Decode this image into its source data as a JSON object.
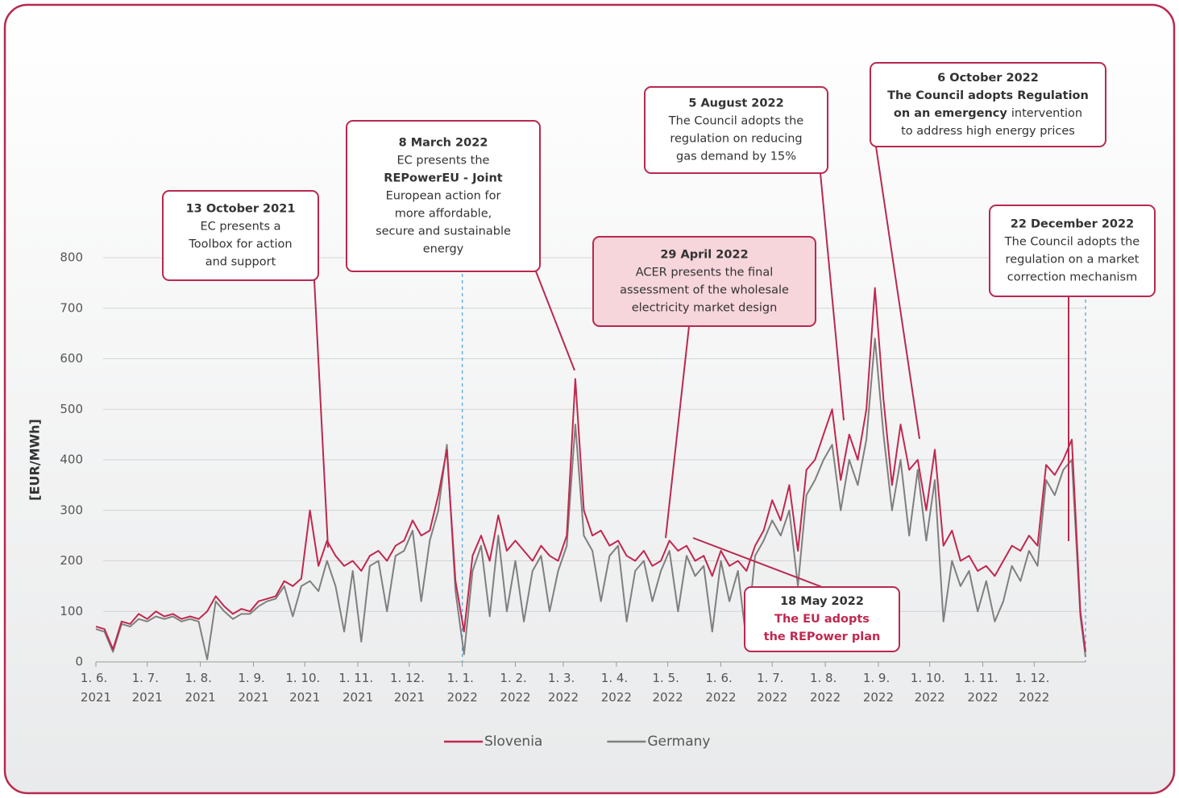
{
  "chart_data": {
    "type": "line",
    "y_label": "[EUR/MWh]",
    "xlim": [
      0,
      578
    ],
    "ylim": [
      0,
      800
    ],
    "yticks": [
      0,
      100,
      200,
      300,
      400,
      500,
      600,
      700,
      800
    ],
    "xticks": [
      {
        "value": 0,
        "label": "1. 6. 2021"
      },
      {
        "value": 30,
        "label": "1. 7. 2021"
      },
      {
        "value": 61,
        "label": "1. 8. 2021"
      },
      {
        "value": 92,
        "label": "1. 9. 2021"
      },
      {
        "value": 122,
        "label": "1. 10. 2021"
      },
      {
        "value": 153,
        "label": "1. 11. 2021"
      },
      {
        "value": 183,
        "label": "1. 12. 2021"
      },
      {
        "value": 214,
        "label": "1. 1. 2022"
      },
      {
        "value": 245,
        "label": "1. 2. 2022"
      },
      {
        "value": 273,
        "label": "1. 3. 2022"
      },
      {
        "value": 304,
        "label": "1. 4. 2022"
      },
      {
        "value": 334,
        "label": "1. 5. 2022"
      },
      {
        "value": 365,
        "label": "1. 6. 2022"
      },
      {
        "value": 395,
        "label": "1. 7. 2022"
      },
      {
        "value": 426,
        "label": "1. 8. 2022"
      },
      {
        "value": 457,
        "label": "1. 9. 2022"
      },
      {
        "value": 487,
        "label": "1. 10. 2022"
      },
      {
        "value": 518,
        "label": "1. 11. 2022"
      },
      {
        "value": 548,
        "label": "1. 12. 2022"
      }
    ],
    "grid": true,
    "legend": "bottom",
    "x": [
      0,
      5,
      10,
      15,
      20,
      25,
      30,
      35,
      40,
      45,
      50,
      55,
      60,
      65,
      70,
      75,
      80,
      85,
      90,
      95,
      100,
      105,
      110,
      115,
      120,
      125,
      130,
      135,
      140,
      145,
      150,
      155,
      160,
      165,
      170,
      175,
      180,
      185,
      190,
      195,
      200,
      205,
      210,
      215,
      220,
      225,
      230,
      235,
      240,
      245,
      250,
      255,
      260,
      265,
      270,
      275,
      280,
      285,
      290,
      295,
      300,
      305,
      310,
      315,
      320,
      325,
      330,
      335,
      340,
      345,
      350,
      355,
      360,
      365,
      370,
      375,
      380,
      385,
      390,
      395,
      400,
      405,
      410,
      415,
      420,
      425,
      430,
      435,
      440,
      445,
      450,
      455,
      460,
      465,
      470,
      475,
      480,
      485,
      490,
      495,
      500,
      505,
      510,
      515,
      520,
      525,
      530,
      535,
      540,
      545,
      550,
      555,
      560,
      565,
      570,
      575,
      578
    ],
    "series": [
      {
        "name": "Slovenia",
        "color": "#c0284f",
        "values": [
          70,
          65,
          25,
          80,
          75,
          95,
          85,
          100,
          90,
          95,
          85,
          90,
          85,
          100,
          130,
          110,
          95,
          105,
          100,
          120,
          125,
          130,
          160,
          150,
          165,
          300,
          190,
          240,
          210,
          190,
          200,
          180,
          210,
          220,
          200,
          230,
          240,
          280,
          250,
          260,
          330,
          420,
          160,
          60,
          210,
          250,
          200,
          290,
          220,
          240,
          220,
          200,
          230,
          210,
          200,
          250,
          560,
          300,
          250,
          260,
          230,
          240,
          210,
          200,
          220,
          190,
          200,
          240,
          220,
          230,
          200,
          210,
          170,
          220,
          190,
          200,
          180,
          230,
          260,
          320,
          280,
          350,
          220,
          380,
          400,
          450,
          500,
          360,
          450,
          400,
          500,
          740,
          520,
          350,
          470,
          380,
          400,
          300,
          420,
          230,
          260,
          200,
          210,
          180,
          190,
          170,
          200,
          230,
          220,
          250,
          230,
          390,
          370,
          400,
          440,
          100,
          20
        ]
      },
      {
        "name": "Germany",
        "color": "#7f7f7f",
        "values": [
          65,
          60,
          20,
          75,
          70,
          85,
          80,
          90,
          85,
          90,
          80,
          85,
          80,
          5,
          120,
          100,
          85,
          95,
          95,
          110,
          120,
          125,
          150,
          90,
          150,
          160,
          140,
          200,
          150,
          60,
          180,
          40,
          190,
          200,
          100,
          210,
          220,
          260,
          120,
          240,
          300,
          430,
          140,
          15,
          180,
          230,
          90,
          250,
          100,
          200,
          80,
          180,
          210,
          100,
          180,
          230,
          470,
          250,
          220,
          120,
          210,
          230,
          80,
          180,
          200,
          120,
          180,
          220,
          100,
          210,
          170,
          190,
          60,
          200,
          120,
          180,
          40,
          210,
          240,
          280,
          250,
          300,
          150,
          330,
          360,
          400,
          430,
          300,
          400,
          350,
          440,
          640,
          450,
          300,
          400,
          250,
          380,
          240,
          360,
          80,
          200,
          150,
          180,
          100,
          160,
          80,
          120,
          190,
          160,
          220,
          190,
          360,
          330,
          380,
          400,
          90,
          10
        ]
      }
    ],
    "annotations": [
      {
        "date": "13 October 2021",
        "lines": [
          [
            "EC presents a"
          ],
          [
            "Toolbox for action"
          ],
          [
            "and support"
          ]
        ]
      },
      {
        "date": "8 March 2022",
        "lines": [
          [
            "EC presents the"
          ],
          [
            "REPowerEU - Joint"
          ],
          [
            "European action for"
          ],
          [
            "more affordable,"
          ],
          [
            "secure and sustainable"
          ],
          [
            "energy"
          ]
        ]
      },
      {
        "date": "29 April 2022",
        "lines": [
          [
            "ACER presents the final"
          ],
          [
            "assessment of the wholesale"
          ],
          [
            "electricity market design"
          ]
        ]
      },
      {
        "date": "18 May 2022",
        "lines": [
          [
            "The EU adopts"
          ],
          [
            "the REPower plan"
          ]
        ]
      },
      {
        "date": "5 August 2022",
        "lines": [
          [
            "The Council adopts the"
          ],
          [
            "regulation on reducing"
          ],
          [
            "gas demand by 15%"
          ]
        ]
      },
      {
        "date": "6 October 2022",
        "lines": [
          [
            "The Council adopts Regulation"
          ],
          [
            "on an emergency",
            "intervention"
          ],
          [
            "to address high energy prices"
          ]
        ]
      },
      {
        "date": "22 December 2022",
        "lines": [
          [
            "The Council adopts the"
          ],
          [
            "regulation on a market"
          ],
          [
            "correction mechanism"
          ]
        ]
      }
    ]
  }
}
